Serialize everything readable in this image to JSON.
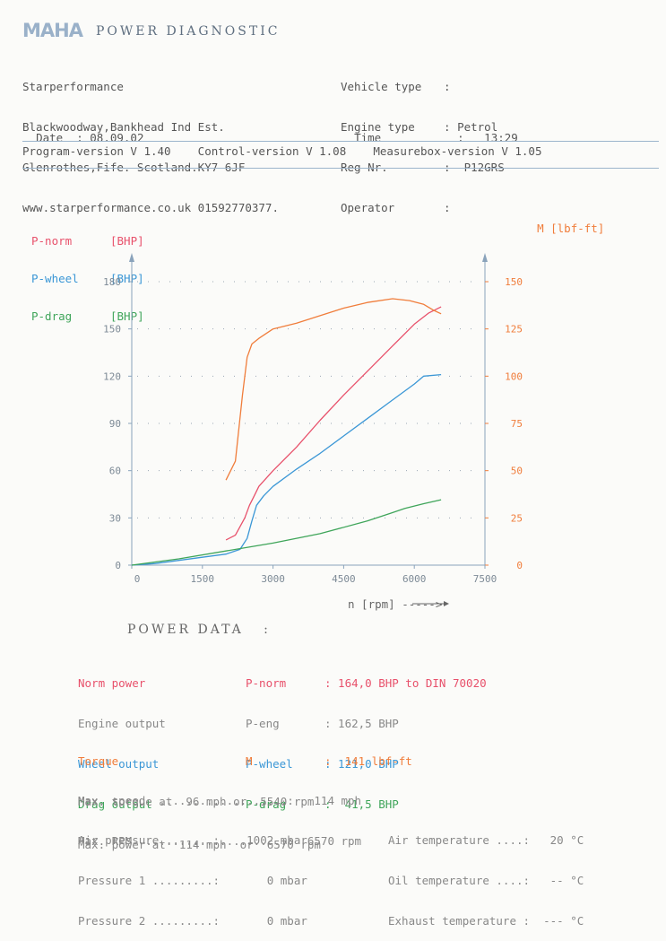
{
  "header": {
    "logo": "MAHA",
    "title": "POWER DIAGNOSTIC",
    "company": {
      "name": "Starperformance",
      "address1": "Blackwoodway,Bankhead Ind Est.",
      "address2": "Glenrothes,Fife. Scotland.KY7 6JF",
      "web_phone": "www.starperformance.co.uk 01592770377."
    },
    "vehicle_info": [
      {
        "label": "Vehicle type",
        "value": ""
      },
      {
        "label": "Engine type",
        "value": "Petrol"
      },
      {
        "label": "Reg Nr.",
        "value": "P12GRS"
      },
      {
        "label": "Operator",
        "value": ""
      }
    ],
    "date_label": "Date",
    "date": "08.09.02",
    "time_label": "Time",
    "time": "13:29",
    "versions": "Program-version V 1.40    Control-version V 1.08    Measurebox-version V 1.05"
  },
  "legend": {
    "left": [
      {
        "name": "P-norm",
        "unit": "[BHP]",
        "color": "#e8516b"
      },
      {
        "name": "P-wheel",
        "unit": "[BHP]",
        "color": "#3b97d6"
      },
      {
        "name": "P-drag",
        "unit": "[BHP]",
        "color": "#3fa55a"
      }
    ],
    "right": {
      "name": "M",
      "unit": "[lbf-ft]",
      "color": "#f07d3b"
    }
  },
  "chart_data": {
    "type": "line",
    "xlabel": "n [rpm] ----->",
    "xlim": [
      0,
      7500
    ],
    "x_ticks": [
      0,
      1500,
      3000,
      4500,
      6000,
      7500
    ],
    "ylim_left": [
      0,
      180
    ],
    "y_ticks_left": [
      0,
      30,
      60,
      90,
      120,
      150,
      180
    ],
    "ylim_right": [
      0,
      150
    ],
    "y_ticks_right": [
      0,
      25,
      50,
      75,
      100,
      125,
      150
    ],
    "grid": "dotted horizontal",
    "series": [
      {
        "name": "P-norm",
        "unit": "BHP",
        "axis": "left",
        "color": "#e8516b",
        "x": [
          2000,
          2200,
          2400,
          2500,
          2600,
          2700,
          3000,
          3500,
          4000,
          4500,
          5000,
          5500,
          6000,
          6300,
          6570
        ],
        "y": [
          16,
          19,
          30,
          38,
          44,
          50,
          60,
          75,
          92,
          108,
          123,
          138,
          153,
          160,
          164
        ]
      },
      {
        "name": "P-wheel",
        "unit": "BHP",
        "axis": "left",
        "color": "#3b97d6",
        "x": [
          0,
          500,
          1000,
          1500,
          2000,
          2300,
          2450,
          2550,
          2650,
          2800,
          3000,
          3500,
          4000,
          4500,
          5000,
          5500,
          6000,
          6200,
          6570
        ],
        "y": [
          0,
          1,
          3,
          5,
          7,
          10,
          17,
          28,
          38,
          44,
          50,
          61,
          71,
          82,
          93,
          104,
          115,
          120,
          121
        ]
      },
      {
        "name": "P-drag",
        "unit": "BHP",
        "axis": "left",
        "color": "#3fa55a",
        "x": [
          0,
          1000,
          2000,
          3000,
          4000,
          5000,
          5500,
          5800,
          6200,
          6570
        ],
        "y": [
          0,
          4,
          9,
          14,
          20,
          28,
          33,
          36,
          39,
          41.5
        ]
      },
      {
        "name": "M",
        "unit": "lbf-ft",
        "axis": "right",
        "color": "#f07d3b",
        "x": [
          2000,
          2200,
          2350,
          2450,
          2550,
          2700,
          3000,
          3500,
          4000,
          4500,
          5000,
          5540,
          5900,
          6200,
          6400,
          6570
        ],
        "y": [
          45,
          55,
          90,
          110,
          117,
          120,
          125,
          128,
          132,
          136,
          139,
          141,
          140,
          138,
          135,
          133
        ]
      }
    ]
  },
  "power_data": {
    "title": "POWER DATA   :",
    "rows": [
      {
        "label": "Norm power",
        "sym": "P-norm",
        "value": ": 164,0 BHP to DIN 70020",
        "color": "#e8516b"
      },
      {
        "label": "Engine output",
        "sym": "P-eng",
        "value": ": 162,5 BHP",
        "color": "#888888"
      },
      {
        "label": "Wheel output",
        "sym": "P-wheel",
        "value": ": 121,0 BHP",
        "color": "#3b97d6"
      },
      {
        "label": "Drag output",
        "sym": "P-drag",
        "value": ":  41,5 BHP",
        "color": "#3fa55a"
      }
    ],
    "max_power": "Max. power at  114 mph  or  6570 rpm",
    "torque": {
      "label": "Torque",
      "sym": "M",
      "value": ":  141 lbf-ft"
    },
    "max_torque": "Max. torque at  96 mph or  5540 rpm",
    "max_speed": "Max. speed  ...................:   114 mph",
    "max_rpm": "Max. RPM  .....................:  6570 rpm",
    "env_left": [
      "Air pressure .......:    1002 mbar",
      "Pressure 1 .........:       0 mbar",
      "Pressure 2 .........:       0 mbar"
    ],
    "env_right": [
      "Air temperature ....:   20 °C",
      "Oil temperature ....:   -- °C",
      "Exhaust temperature :  --- °C"
    ]
  }
}
